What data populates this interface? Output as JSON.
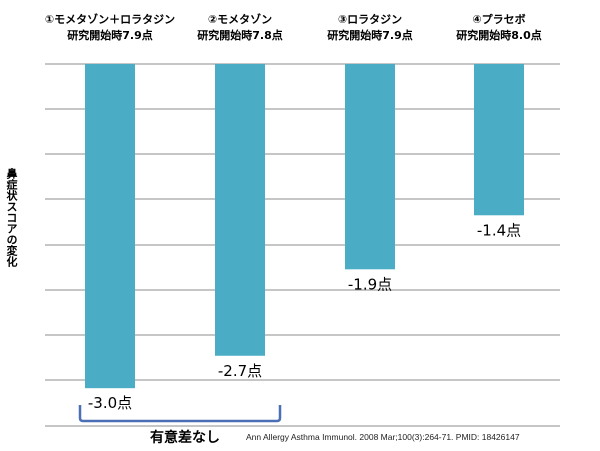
{
  "chart_data": {
    "type": "bar",
    "categories": [
      "①モメタゾン＋ロラタジン",
      "②モメタゾン",
      "③ロラタジン",
      "④プラセボ"
    ],
    "category_subtitles": [
      "研究開始時7.9点",
      "研究開始時7.8点",
      "研究開始時7.9点",
      "研究開始時8.0点"
    ],
    "values": [
      -3.0,
      -2.7,
      -1.9,
      -1.4
    ],
    "value_labels": [
      "-3.0点",
      "-2.7点",
      "-1.9点",
      "-1.4点"
    ],
    "ylabel": "鼻症状スコアの変化",
    "ylim": [
      -3.35,
      0
    ],
    "grid": true,
    "bar_color": "#4bacc6",
    "annotation": "有意差なし",
    "annotation_color": "#4a6fb5",
    "citation": "Ann Allergy Asthma Immunol. 2008 Mar;100(3):264-71. PMID: 18426147"
  }
}
